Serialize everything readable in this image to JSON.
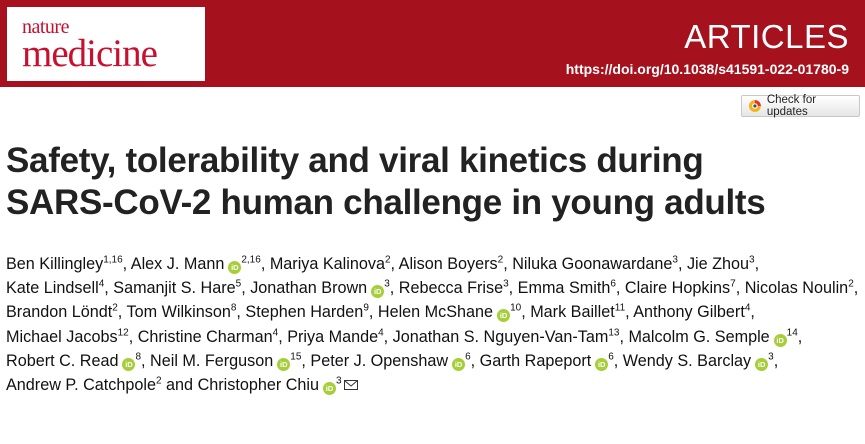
{
  "header": {
    "journal_line1": "nature",
    "journal_line2": "medicine",
    "section": "ARTICLES",
    "doi": "https://doi.org/10.1038/s41591-022-01780-9",
    "banner_color": "#a5121e",
    "logo_color": "#c8102e"
  },
  "check_updates": {
    "label": "Check for updates",
    "icon": "check-updates-icon"
  },
  "title": {
    "line1": "Safety, tolerability and viral kinetics during",
    "line2": "SARS-CoV-2 human challenge in young adults"
  },
  "orcid_color": "#a6ce39",
  "authors": [
    {
      "name": "Ben Killingley",
      "aff": "1,16",
      "orcid": false
    },
    {
      "name": "Alex J. Mann",
      "aff": "2,16",
      "orcid": true
    },
    {
      "name": "Mariya Kalinova",
      "aff": "2",
      "orcid": false
    },
    {
      "name": "Alison Boyers",
      "aff": "2",
      "orcid": false
    },
    {
      "name": "Niluka Goonawardane",
      "aff": "3",
      "orcid": false
    },
    {
      "name": "Jie Zhou",
      "aff": "3",
      "orcid": false
    },
    {
      "name": "Kate Lindsell",
      "aff": "4",
      "orcid": false
    },
    {
      "name": "Samanjit S. Hare",
      "aff": "5",
      "orcid": false
    },
    {
      "name": "Jonathan Brown",
      "aff": "3",
      "orcid": true
    },
    {
      "name": "Rebecca Frise",
      "aff": "3",
      "orcid": false
    },
    {
      "name": "Emma Smith",
      "aff": "6",
      "orcid": false
    },
    {
      "name": "Claire Hopkins",
      "aff": "7",
      "orcid": false
    },
    {
      "name": "Nicolas Noulin",
      "aff": "2",
      "orcid": false
    },
    {
      "name": "Brandon Löndt",
      "aff": "2",
      "orcid": false
    },
    {
      "name": "Tom Wilkinson",
      "aff": "8",
      "orcid": false
    },
    {
      "name": "Stephen Harden",
      "aff": "9",
      "orcid": false
    },
    {
      "name": "Helen McShane",
      "aff": "10",
      "orcid": true
    },
    {
      "name": "Mark Baillet",
      "aff": "11",
      "orcid": false
    },
    {
      "name": "Anthony Gilbert",
      "aff": "4",
      "orcid": false
    },
    {
      "name": "Michael Jacobs",
      "aff": "12",
      "orcid": false
    },
    {
      "name": "Christine Charman",
      "aff": "4",
      "orcid": false
    },
    {
      "name": "Priya Mande",
      "aff": "4",
      "orcid": false
    },
    {
      "name": "Jonathan S. Nguyen-Van-Tam",
      "aff": "13",
      "orcid": false
    },
    {
      "name": "Malcolm G. Semple",
      "aff": "14",
      "orcid": true
    },
    {
      "name": "Robert C. Read",
      "aff": "8",
      "orcid": true
    },
    {
      "name": "Neil M. Ferguson",
      "aff": "15",
      "orcid": true
    },
    {
      "name": "Peter J. Openshaw",
      "aff": "6",
      "orcid": true
    },
    {
      "name": "Garth Rapeport",
      "aff": "6",
      "orcid": true
    },
    {
      "name": "Wendy S. Barclay",
      "aff": "3",
      "orcid": true
    },
    {
      "name": "Andrew P. Catchpole",
      "aff": "2",
      "orcid": false
    },
    {
      "name": "Christopher Chiu",
      "aff": "3",
      "orcid": true,
      "corresponding": true
    }
  ],
  "authors_last_joiner": "and"
}
